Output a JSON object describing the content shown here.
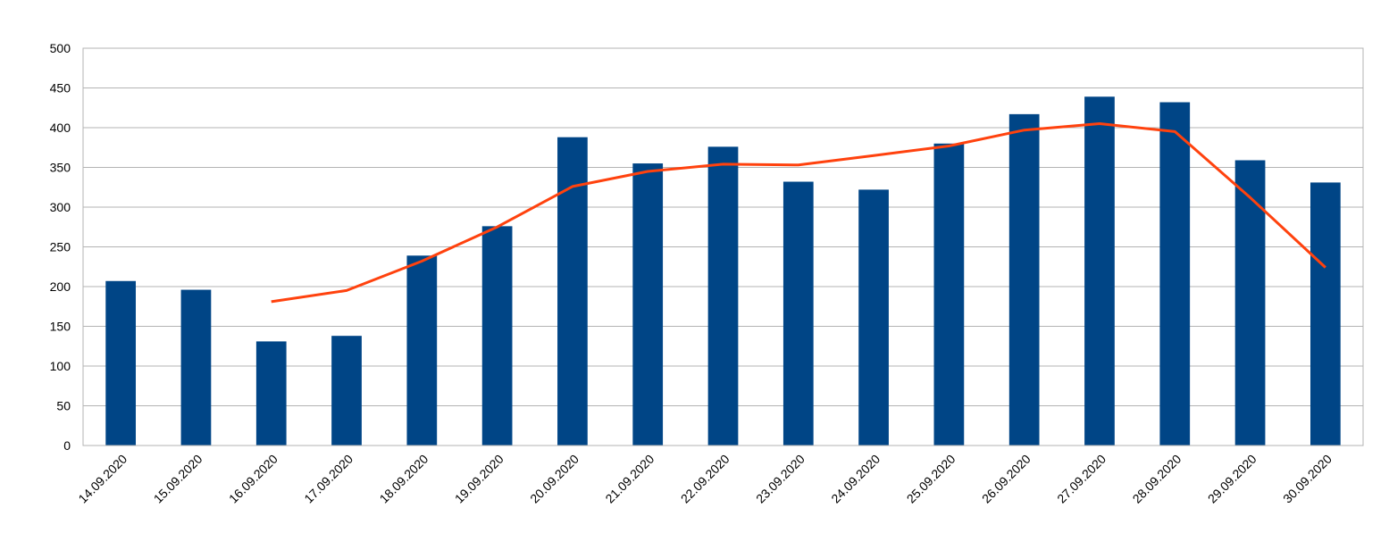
{
  "chart_data": {
    "type": "bar",
    "title": "",
    "xlabel": "",
    "ylabel": "",
    "ylim": [
      0,
      500
    ],
    "yticks": [
      0,
      50,
      100,
      150,
      200,
      250,
      300,
      350,
      400,
      450,
      500
    ],
    "grid": true,
    "legend": "none",
    "categories": [
      "14.09.2020",
      "15.09.2020",
      "16.09.2020",
      "17.09.2020",
      "18.09.2020",
      "19.09.2020",
      "20.09.2020",
      "21.09.2020",
      "22.09.2020",
      "23.09.2020",
      "24.09.2020",
      "25.09.2020",
      "26.09.2020",
      "27.09.2020",
      "28.09.2020",
      "29.09.2020",
      "30.09.2020"
    ],
    "series": [
      {
        "type": "bar",
        "color": "#004586",
        "values": [
          207,
          196,
          131,
          138,
          239,
          276,
          388,
          355,
          376,
          332,
          322,
          380,
          417,
          439,
          432,
          359,
          331
        ]
      },
      {
        "type": "line",
        "color": "#ff420e",
        "values": [
          null,
          null,
          181,
          195,
          232,
          275,
          326,
          345,
          354,
          353,
          365,
          377,
          397,
          405,
          395,
          312,
          224
        ]
      }
    ]
  }
}
